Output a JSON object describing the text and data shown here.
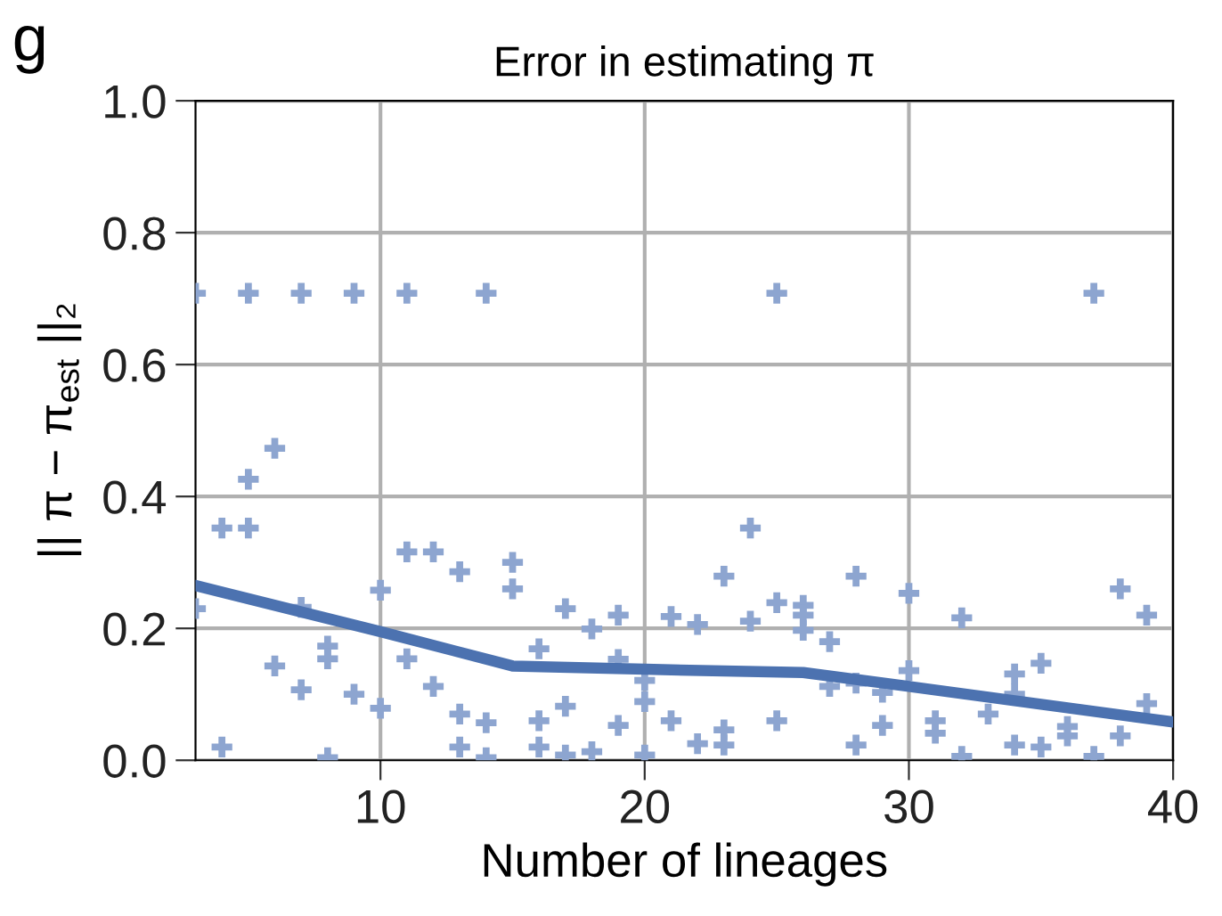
{
  "chart_data": {
    "type": "scatter",
    "title": "Error in estimating π",
    "xlabel": "Number of lineages",
    "ylabel": "|| π − π$_{est}$ ||₂",
    "annotations": [
      "g"
    ],
    "xlim": [
      3,
      40
    ],
    "ylim": [
      0,
      1
    ],
    "xticks": [
      10,
      20,
      30,
      40
    ],
    "yticks": [
      {
        "value": 0,
        "label": "0.0"
      },
      {
        "value": 0.2,
        "label": "0.2"
      },
      {
        "value": 0.4,
        "label": "0.4"
      },
      {
        "value": 0.6,
        "label": "0.6"
      },
      {
        "value": 0.8,
        "label": "0.8"
      },
      {
        "value": 1,
        "label": "1.0"
      }
    ],
    "grid": true,
    "series": [
      {
        "marker": "cross",
        "color": "#8da5d0",
        "x": [
          3,
          5,
          7,
          9,
          11,
          14,
          25,
          37,
          3,
          4,
          5,
          5,
          6,
          4,
          6,
          7,
          7,
          8,
          8,
          8,
          9,
          10,
          10,
          11,
          11,
          12,
          12,
          13,
          13,
          13,
          14,
          14,
          15,
          15,
          16,
          16,
          16,
          17,
          17,
          17,
          18,
          18,
          19,
          19,
          19,
          20,
          20,
          20,
          21,
          21,
          22,
          22,
          23,
          23,
          23,
          24,
          24,
          25,
          25,
          26,
          26,
          26,
          27,
          27,
          28,
          28,
          28,
          29,
          29,
          30,
          30,
          31,
          31,
          32,
          32,
          33,
          34,
          34,
          34,
          35,
          35,
          36,
          36,
          37,
          38,
          38,
          39,
          39
        ],
        "values": [
          0.708,
          0.708,
          0.708,
          0.708,
          0.708,
          0.708,
          0.708,
          0.708,
          0.23,
          0.352,
          0.352,
          0.426,
          0.473,
          0.02,
          0.143,
          0.107,
          0.232,
          0.173,
          0.154,
          0.004,
          0.1,
          0.079,
          0.258,
          0.154,
          0.316,
          0.316,
          0.112,
          0.286,
          0.07,
          0.02,
          0.057,
          0.004,
          0.3,
          0.26,
          0.169,
          0.06,
          0.02,
          0.23,
          0.082,
          0.008,
          0.199,
          0.013,
          0.22,
          0.153,
          0.053,
          0.121,
          0.089,
          0.008,
          0.218,
          0.06,
          0.206,
          0.025,
          0.279,
          0.046,
          0.023,
          0.352,
          0.211,
          0.239,
          0.06,
          0.235,
          0.22,
          0.197,
          0.18,
          0.112,
          0.279,
          0.117,
          0.023,
          0.103,
          0.053,
          0.253,
          0.136,
          0.06,
          0.041,
          0.216,
          0.006,
          0.07,
          0.131,
          0.1,
          0.023,
          0.147,
          0.02,
          0.051,
          0.037,
          0.006,
          0.26,
          0.037,
          0.22,
          0.086
        ]
      },
      {
        "type": "line",
        "marker": "none",
        "color": "#4c72b0",
        "x": [
          3,
          10,
          15,
          20,
          26,
          30,
          35,
          40
        ],
        "values": [
          0.265,
          0.195,
          0.143,
          0.138,
          0.133,
          0.112,
          0.085,
          0.058
        ]
      }
    ]
  }
}
